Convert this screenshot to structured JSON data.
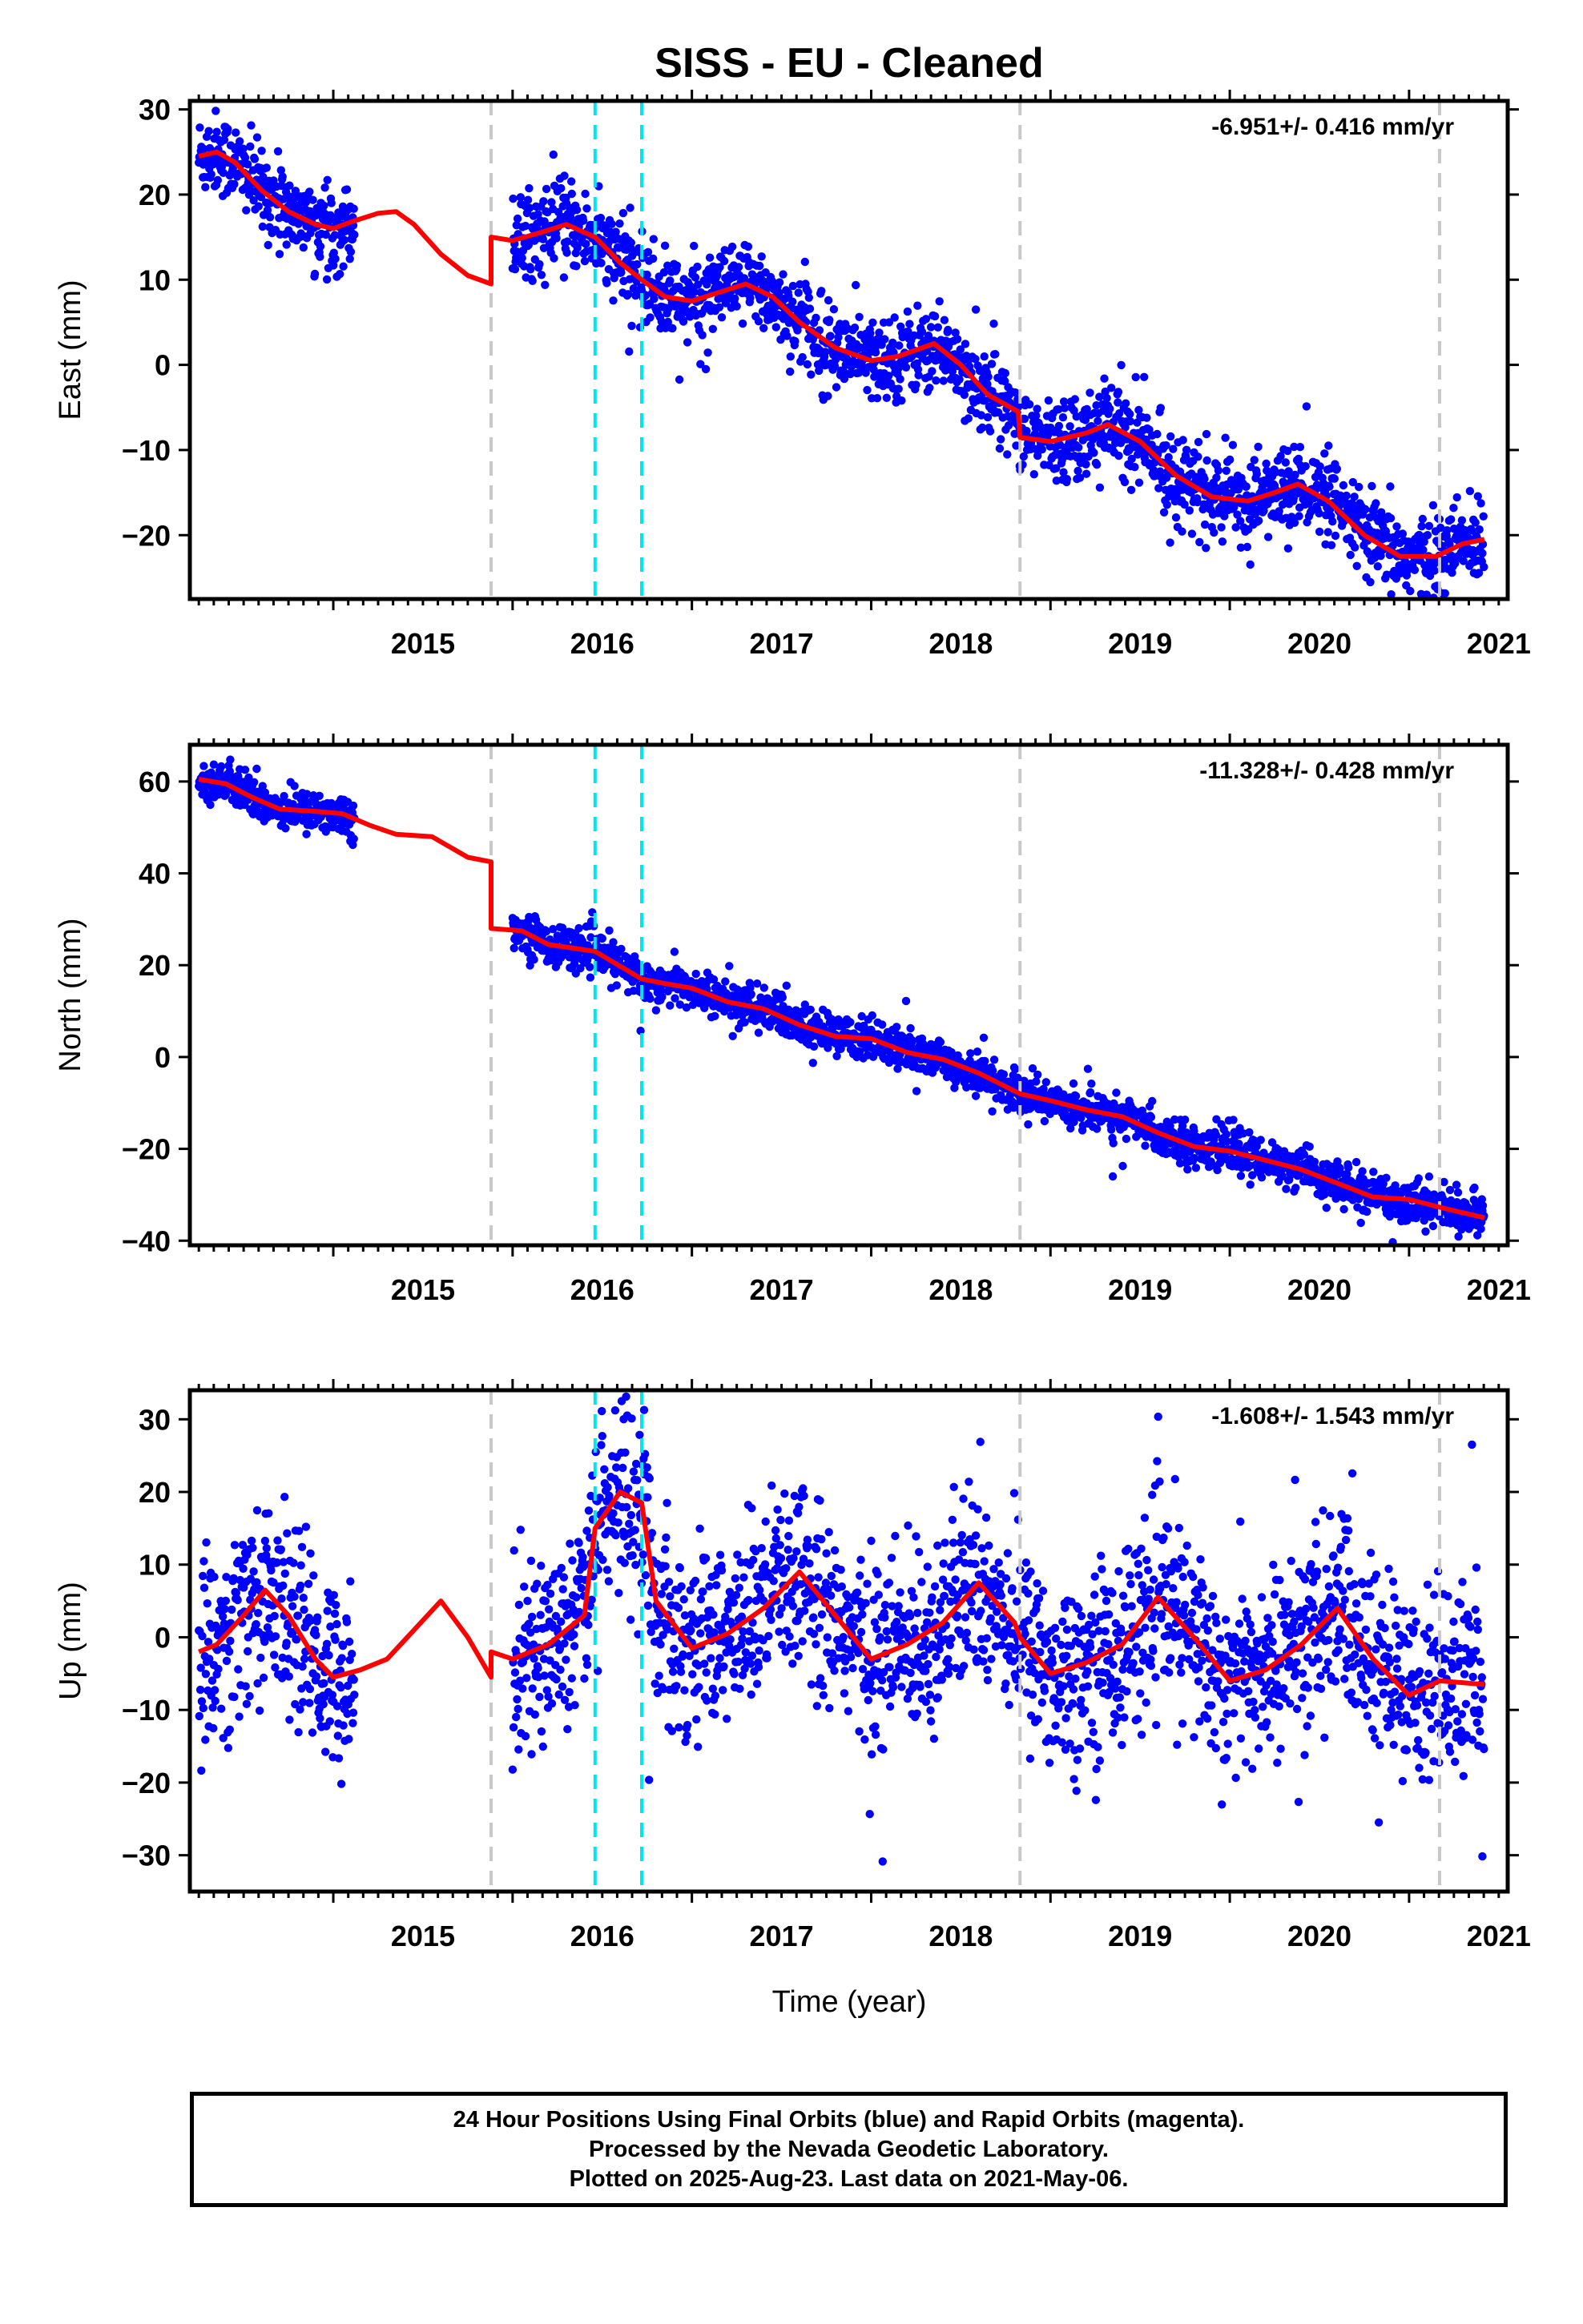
{
  "chart_data": {
    "type": "scatter",
    "title": "SISS  - EU - Cleaned",
    "xlabel": "Time (year)",
    "x_ticks": [
      "2015",
      "2016",
      "2017",
      "2018",
      "2019",
      "2020",
      "2021"
    ],
    "xlim": [
      2014.2,
      2021.55
    ],
    "colors": {
      "points": "#0000ff",
      "model": "#ff0000",
      "equipment_change": "#c8c8c8",
      "earthquake": "#00e5ee"
    },
    "vertical_lines": {
      "equipment_change": [
        2015.88,
        2018.83,
        2021.17
      ],
      "earthquake": [
        2016.46,
        2016.72
      ]
    },
    "panels": [
      {
        "id": "east",
        "ylabel": "East (mm)",
        "ylim": [
          -27.5,
          31
        ],
        "yticks": [
          30,
          20,
          10,
          0,
          -10,
          -20
        ],
        "ytick_labels": [
          "30",
          "20",
          "10",
          "0",
          "−10",
          "−20"
        ],
        "rate_label": "-6.951+/- 0.416 mm/yr",
        "scatter": 2.4,
        "trend": [
          [
            2014.25,
            24.5
          ],
          [
            2014.35,
            25.0
          ],
          [
            2014.45,
            23.8
          ],
          [
            2014.6,
            20.5
          ],
          [
            2014.75,
            18.0
          ],
          [
            2014.9,
            16.5
          ],
          [
            2015.0,
            16.0
          ],
          [
            2015.1,
            16.8
          ],
          [
            2015.25,
            17.8
          ],
          [
            2015.35,
            18.0
          ],
          [
            2015.45,
            16.5
          ],
          [
            2015.6,
            13.0
          ],
          [
            2015.75,
            10.5
          ],
          [
            2015.88,
            9.5
          ],
          [
            2015.88,
            15.0
          ],
          [
            2016.0,
            14.6
          ],
          [
            2016.15,
            15.5
          ],
          [
            2016.3,
            16.5
          ],
          [
            2016.46,
            15.0
          ],
          [
            2016.6,
            12.0
          ],
          [
            2016.72,
            10.0
          ],
          [
            2016.85,
            8.0
          ],
          [
            2017.0,
            7.5
          ],
          [
            2017.15,
            8.5
          ],
          [
            2017.3,
            9.5
          ],
          [
            2017.45,
            8.0
          ],
          [
            2017.6,
            5.0
          ],
          [
            2017.8,
            2.0
          ],
          [
            2018.0,
            0.5
          ],
          [
            2018.15,
            1.0
          ],
          [
            2018.35,
            2.5
          ],
          [
            2018.5,
            0.0
          ],
          [
            2018.65,
            -3.5
          ],
          [
            2018.82,
            -5.5
          ],
          [
            2018.83,
            -8.5
          ],
          [
            2019.0,
            -9.0
          ],
          [
            2019.2,
            -8.0
          ],
          [
            2019.32,
            -7.0
          ],
          [
            2019.5,
            -9.0
          ],
          [
            2019.7,
            -13.0
          ],
          [
            2019.9,
            -15.5
          ],
          [
            2020.1,
            -16.0
          ],
          [
            2020.25,
            -15.0
          ],
          [
            2020.38,
            -14.0
          ],
          [
            2020.55,
            -16.0
          ],
          [
            2020.75,
            -20.0
          ],
          [
            2020.95,
            -22.5
          ],
          [
            2021.15,
            -22.5
          ],
          [
            2021.3,
            -21.0
          ],
          [
            2021.42,
            -20.5
          ]
        ]
      },
      {
        "id": "north",
        "ylabel": "North (mm)",
        "ylim": [
          -41,
          68
        ],
        "yticks": [
          60,
          40,
          20,
          0,
          -20,
          -40
        ],
        "ytick_labels": [
          "60",
          "40",
          "20",
          "0",
          "−20",
          "−40"
        ],
        "rate_label": "-11.328+/- 0.428 mm/yr",
        "scatter": 2.2,
        "trend": [
          [
            2014.25,
            60.5
          ],
          [
            2014.4,
            59.5
          ],
          [
            2014.55,
            56.5
          ],
          [
            2014.7,
            54.0
          ],
          [
            2014.9,
            53.5
          ],
          [
            2015.05,
            53.0
          ],
          [
            2015.2,
            50.5
          ],
          [
            2015.35,
            48.5
          ],
          [
            2015.55,
            48.0
          ],
          [
            2015.75,
            43.5
          ],
          [
            2015.88,
            42.5
          ],
          [
            2015.88,
            28.0
          ],
          [
            2016.05,
            27.5
          ],
          [
            2016.2,
            24.5
          ],
          [
            2016.46,
            23.0
          ],
          [
            2016.72,
            17.0
          ],
          [
            2016.85,
            16.0
          ],
          [
            2017.0,
            15.0
          ],
          [
            2017.2,
            12.0
          ],
          [
            2017.4,
            10.5
          ],
          [
            2017.6,
            7.0
          ],
          [
            2017.8,
            4.5
          ],
          [
            2018.0,
            4.0
          ],
          [
            2018.2,
            1.0
          ],
          [
            2018.4,
            -0.5
          ],
          [
            2018.6,
            -3.5
          ],
          [
            2018.83,
            -8.0
          ],
          [
            2019.0,
            -9.5
          ],
          [
            2019.2,
            -11.5
          ],
          [
            2019.4,
            -13.0
          ],
          [
            2019.6,
            -16.5
          ],
          [
            2019.8,
            -19.5
          ],
          [
            2020.0,
            -20.5
          ],
          [
            2020.2,
            -22.5
          ],
          [
            2020.4,
            -24.5
          ],
          [
            2020.6,
            -27.5
          ],
          [
            2020.8,
            -30.5
          ],
          [
            2021.0,
            -31.0
          ],
          [
            2021.2,
            -33.0
          ],
          [
            2021.42,
            -35.0
          ]
        ]
      },
      {
        "id": "up",
        "ylabel": "Up (mm)",
        "ylim": [
          -35,
          34
        ],
        "yticks": [
          30,
          20,
          10,
          0,
          -10,
          -20,
          -30
        ],
        "ytick_labels": [
          "30",
          "20",
          "10",
          "0",
          "−10",
          "−20",
          "−30"
        ],
        "rate_label": "-1.608+/- 1.543 mm/yr",
        "scatter": 6.5,
        "trend": [
          [
            2014.25,
            -2.0
          ],
          [
            2014.35,
            -1.0
          ],
          [
            2014.5,
            3.0
          ],
          [
            2014.62,
            6.5
          ],
          [
            2014.75,
            3.0
          ],
          [
            2014.9,
            -3.0
          ],
          [
            2015.0,
            -5.5
          ],
          [
            2015.15,
            -4.5
          ],
          [
            2015.3,
            -3.0
          ],
          [
            2015.45,
            1.0
          ],
          [
            2015.6,
            5.0
          ],
          [
            2015.75,
            0.0
          ],
          [
            2015.88,
            -5.5
          ],
          [
            2015.88,
            -2.0
          ],
          [
            2016.0,
            -3.0
          ],
          [
            2016.2,
            -1.0
          ],
          [
            2016.4,
            3.0
          ],
          [
            2016.46,
            15.0
          ],
          [
            2016.6,
            20.0
          ],
          [
            2016.72,
            18.5
          ],
          [
            2016.8,
            5.0
          ],
          [
            2017.0,
            -1.5
          ],
          [
            2017.2,
            0.5
          ],
          [
            2017.4,
            4.0
          ],
          [
            2017.6,
            9.0
          ],
          [
            2017.8,
            3.0
          ],
          [
            2018.0,
            -3.0
          ],
          [
            2018.2,
            -1.0
          ],
          [
            2018.4,
            2.0
          ],
          [
            2018.6,
            7.5
          ],
          [
            2018.8,
            2.0
          ],
          [
            2018.83,
            0.0
          ],
          [
            2019.0,
            -5.0
          ],
          [
            2019.2,
            -3.5
          ],
          [
            2019.4,
            -1.0
          ],
          [
            2019.6,
            5.5
          ],
          [
            2019.8,
            0.0
          ],
          [
            2020.0,
            -6.0
          ],
          [
            2020.2,
            -4.5
          ],
          [
            2020.4,
            -1.0
          ],
          [
            2020.6,
            4.0
          ],
          [
            2020.8,
            -3.0
          ],
          [
            2021.0,
            -8.0
          ],
          [
            2021.17,
            -6.0
          ],
          [
            2021.42,
            -6.5
          ]
        ]
      }
    ],
    "data_spans": [
      [
        2014.25,
        2015.12
      ],
      [
        2016.0,
        2021.42
      ]
    ],
    "gap_feature": {
      "up_extra_interval": [
        2016.46,
        2016.72
      ],
      "up_extra_offset": 8
    }
  },
  "footer": {
    "line1": "24 Hour Positions Using Final Orbits (blue) and Rapid Orbits (magenta).",
    "line2": "Processed by the Nevada Geodetic Laboratory.",
    "line3": "Plotted on 2025-Aug-23. Last data on 2021-May-06."
  }
}
